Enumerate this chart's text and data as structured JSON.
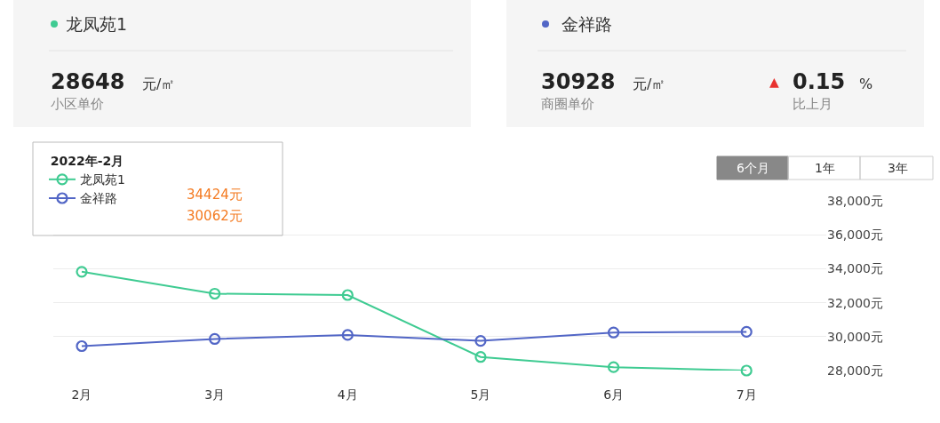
{
  "chart_data": {
    "type": "line",
    "categories": [
      "2月",
      "3月",
      "4月",
      "5月",
      "6月",
      "7月"
    ],
    "series": [
      {
        "name": "龙凤苑1",
        "color": "#3fcb92",
        "values": [
          33820,
          32530,
          32450,
          28800,
          28200,
          28000
        ]
      },
      {
        "name": "金祥路",
        "color": "#5266c6",
        "values": [
          29440,
          29860,
          30100,
          29750,
          30240,
          30280
        ]
      }
    ],
    "ylim": [
      28000,
      38000
    ],
    "yticks": [
      {
        "value": 28000,
        "label": "28,000元"
      },
      {
        "value": 30000,
        "label": "30,000元"
      },
      {
        "value": 32000,
        "label": "32,000元"
      },
      {
        "value": 34000,
        "label": "34,000元"
      },
      {
        "value": 36000,
        "label": "36,000元"
      },
      {
        "value": 38000,
        "label": "38,000元"
      }
    ],
    "grid": "y",
    "marker": "circle",
    "line_style": "solid",
    "legend": "top left",
    "legend_title": "2022年-2月",
    "annotations": [
      "龙凤苑1",
      "28648",
      "元/㎡",
      "小区单价",
      "金祥路",
      "30928",
      "元/㎡",
      "商圈单价",
      "▲",
      "0.15",
      "%",
      "比上月",
      "6个月",
      "1年",
      "3年",
      "34424元",
      "30062元"
    ]
  }
}
